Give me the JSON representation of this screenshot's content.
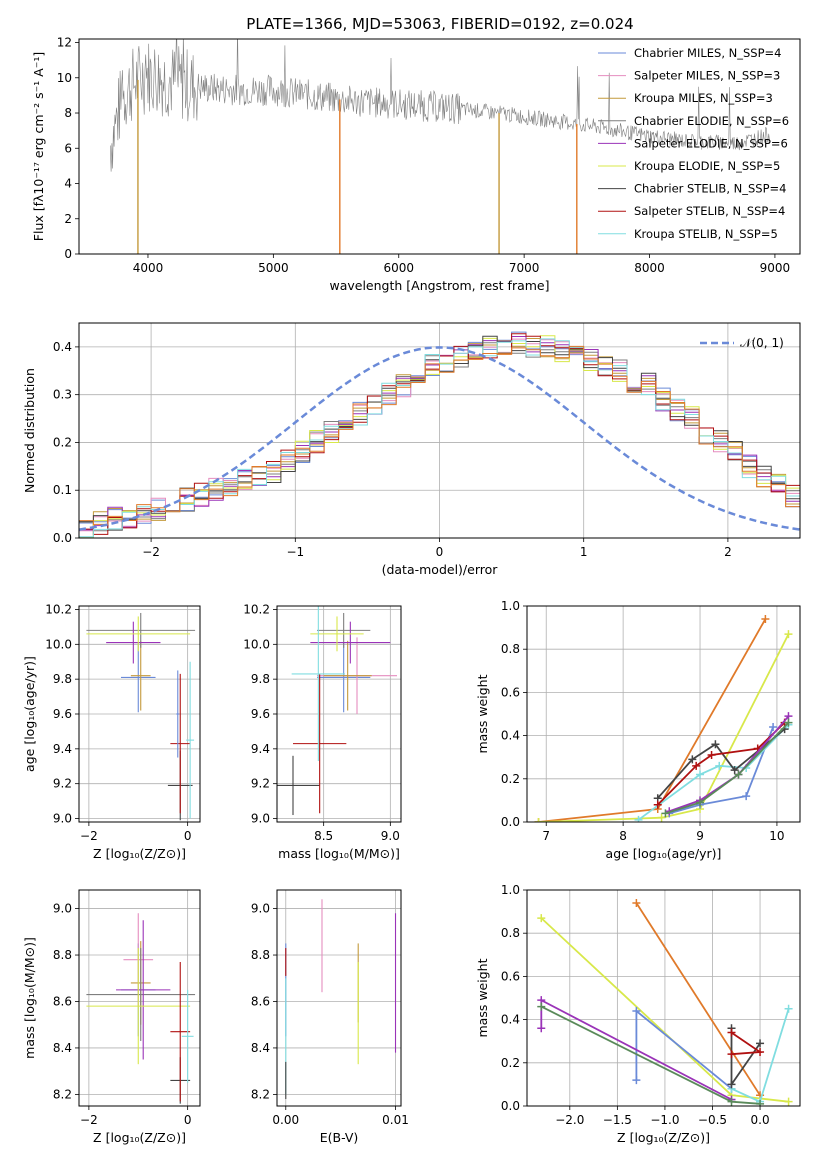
{
  "colors": {
    "Chabrier MILES": "#6a8ad8",
    "Salpeter MILES": "#e58dbf",
    "Kroupa MILES": "#c49a3c",
    "Chabrier ELODIE": "#7f7f7f",
    "Salpeter ELODIE": "#9a33b8",
    "Kroupa ELODIE": "#d8e84a",
    "Chabrier STELIB": "#444444",
    "Salpeter STELIB": "#b01010",
    "Kroupa STELIB": "#80dde0",
    "orange": "#e07a2a",
    "green": "#5a8a5a",
    "normal": "#6a8ad8"
  },
  "chart_data": [
    {
      "type": "line",
      "title": "PLATE=1366, MJD=53063, FIBERID=0192, z=0.024",
      "xlabel": "wavelength [Angstrom, rest frame]",
      "ylabel": "Flux [fλ10⁻¹⁷ erg cm⁻² s⁻¹ A⁻¹]",
      "xlim": [
        3450,
        9200
      ],
      "ylim": [
        0,
        12.2
      ],
      "xticks": [
        "4000",
        "5000",
        "6000",
        "7000",
        "8000",
        "9000"
      ],
      "yticks": [
        "0",
        "2",
        "4",
        "6",
        "8",
        "10",
        "12"
      ],
      "legend": [
        "Chabrier MILES, N_SSP=4",
        "Salpeter MILES, N_SSP=3",
        "Kroupa MILES, N_SSP=3",
        "Chabrier ELODIE, N_SSP=6",
        "Salpeter ELODIE, N_SSP=6",
        "Kroupa ELODIE, N_SSP=5",
        "Chabrier STELIB, N_SSP=4",
        "Salpeter STELIB, N_SSP=4",
        "Kroupa STELIB, N_SSP=5"
      ],
      "legend_position": "top-right",
      "data_spectrum_continuum": {
        "x": [
          3700,
          3800,
          3900,
          4000,
          4100,
          4300,
          4500,
          4800,
          5000,
          5300,
          5600,
          6000,
          6400,
          6800,
          7200,
          7600,
          7900,
          8300,
          8700,
          8960
        ],
        "y": [
          6.2,
          9.0,
          9.8,
          10.2,
          10.0,
          9.6,
          9.4,
          9.3,
          9.3,
          9.0,
          8.7,
          8.5,
          8.3,
          8.0,
          7.6,
          7.2,
          6.8,
          6.4,
          6.3,
          6.8
        ]
      },
      "glitches_x": [
        3920,
        5530,
        6800,
        7420
      ]
    },
    {
      "type": "bar",
      "xlabel": "(data-model)/error",
      "ylabel": "Normed distribution",
      "xlim": [
        -2.5,
        2.5
      ],
      "ylim": [
        0,
        0.45
      ],
      "xticks": [
        "−2",
        "−1",
        "0",
        "1",
        "2"
      ],
      "yticks": [
        "0.0",
        "0.1",
        "0.2",
        "0.3",
        "0.4"
      ],
      "legend": [
        "𝒩(0, 1)"
      ],
      "legend_position": "top-right",
      "grid": true,
      "bin_edges_start": -2.5,
      "bin_width": 0.1,
      "histogram_values": [
        0.02,
        0.03,
        0.04,
        0.04,
        0.05,
        0.06,
        0.07,
        0.08,
        0.09,
        0.1,
        0.11,
        0.12,
        0.13,
        0.14,
        0.16,
        0.18,
        0.2,
        0.22,
        0.24,
        0.26,
        0.28,
        0.3,
        0.32,
        0.34,
        0.36,
        0.37,
        0.38,
        0.39,
        0.4,
        0.4,
        0.41,
        0.4,
        0.4,
        0.39,
        0.38,
        0.37,
        0.36,
        0.35,
        0.33,
        0.32,
        0.29,
        0.27,
        0.25,
        0.22,
        0.2,
        0.18,
        0.15,
        0.13,
        0.11,
        0.09
      ]
    },
    {
      "type": "scatter",
      "xlabel": "Z [log₁₀(Z/Z⊙)]",
      "ylabel": "age  [log₁₀(age/yr)]",
      "xlim": [
        -2.2,
        0.25
      ],
      "ylim": [
        8.98,
        10.22
      ],
      "xticks": [
        "−2",
        "0"
      ],
      "yticks": [
        "9.0",
        "9.2",
        "9.4",
        "9.6",
        "9.8",
        "10.0",
        "10.2"
      ],
      "grid": true,
      "points": [
        {
          "s": "Chabrier MILES",
          "x": -1.0,
          "y": 9.81,
          "dx": 0.35,
          "dy": 0.2
        },
        {
          "s": "Kroupa MILES",
          "x": -0.95,
          "y": 9.82,
          "dx": 0.2,
          "dy": 0.2
        },
        {
          "s": "Chabrier ELODIE",
          "x": -0.95,
          "y": 10.08,
          "dx": 1.1,
          "dy": 0.1
        },
        {
          "s": "Salpeter ELODIE",
          "x": -1.1,
          "y": 10.01,
          "dx": 0.55,
          "dy": 0.12
        },
        {
          "s": "Kroupa ELODIE",
          "x": -1.0,
          "y": 10.06,
          "dx": 1.05,
          "dy": 0.1
        },
        {
          "s": "Chabrier STELIB",
          "x": -0.15,
          "y": 9.19,
          "dx": 0.25,
          "dy": 0.2
        },
        {
          "s": "Salpeter STELIB",
          "x": -0.15,
          "y": 9.43,
          "dx": 0.2,
          "dy": 0.4
        },
        {
          "s": "Kroupa STELIB",
          "x": 0.05,
          "y": 9.45,
          "dx": 0.08,
          "dy": 0.45
        },
        {
          "s": "Chabrier MILES",
          "x": -0.2,
          "y": 9.6,
          "dx": 0.03,
          "dy": 0.25
        }
      ]
    },
    {
      "type": "scatter",
      "xlabel": "mass [log₁₀(M/M⊙)]",
      "ylabel": "",
      "xlim": [
        8.15,
        9.08
      ],
      "ylim": [
        8.98,
        10.22
      ],
      "xticks": [
        "8.5",
        "9.0"
      ],
      "yticks": [
        "9.0",
        "9.2",
        "9.4",
        "9.6",
        "9.8",
        "10.0",
        "10.2"
      ],
      "grid": true,
      "points": [
        {
          "s": "Chabrier MILES",
          "x": 8.65,
          "y": 9.81,
          "dx": 0.2,
          "dy": 0.2
        },
        {
          "s": "Salpeter MILES",
          "x": 8.75,
          "y": 9.82,
          "dx": 0.3,
          "dy": 0.22
        },
        {
          "s": "Kroupa MILES",
          "x": 8.68,
          "y": 9.82,
          "dx": 0.18,
          "dy": 0.2
        },
        {
          "s": "Chabrier ELODIE",
          "x": 8.65,
          "y": 10.08,
          "dx": 0.2,
          "dy": 0.1
        },
        {
          "s": "Salpeter ELODIE",
          "x": 8.7,
          "y": 10.01,
          "dx": 0.3,
          "dy": 0.12
        },
        {
          "s": "Kroupa ELODIE",
          "x": 8.6,
          "y": 10.06,
          "dx": 0.2,
          "dy": 0.1
        },
        {
          "s": "Chabrier STELIB",
          "x": 8.27,
          "y": 9.19,
          "dx": 0.2,
          "dy": 0.17
        },
        {
          "s": "Salpeter STELIB",
          "x": 8.47,
          "y": 9.43,
          "dx": 0.2,
          "dy": 0.4
        },
        {
          "s": "Kroupa STELIB",
          "x": 8.46,
          "y": 9.83,
          "dx": 0.2,
          "dy": 0.5
        }
      ]
    },
    {
      "type": "line",
      "xlabel": "age  [log₁₀(age/yr)]",
      "ylabel": "mass weight",
      "xlim": [
        6.75,
        10.3
      ],
      "ylim": [
        0,
        1.0
      ],
      "xticks": [
        "7",
        "8",
        "9",
        "10"
      ],
      "yticks": [
        "0.0",
        "0.2",
        "0.4",
        "0.6",
        "0.8",
        "1.0"
      ],
      "grid": true,
      "series": [
        {
          "s": "orange",
          "x": [
            6.9,
            8.45,
            9.85
          ],
          "y": [
            0.0,
            0.06,
            0.94
          ]
        },
        {
          "s": "Kroupa ELODIE",
          "x": [
            6.9,
            8.5,
            9.0,
            10.15
          ],
          "y": [
            0.0,
            0.02,
            0.06,
            0.87
          ]
        },
        {
          "s": "Chabrier MILES",
          "x": [
            8.6,
            9.0,
            9.6,
            9.95
          ],
          "y": [
            0.04,
            0.08,
            0.12,
            0.44
          ]
        },
        {
          "s": "Kroupa STELIB",
          "x": [
            8.2,
            9.0,
            9.25,
            9.6,
            10.15
          ],
          "y": [
            0.01,
            0.22,
            0.26,
            0.25,
            0.45
          ]
        },
        {
          "s": "Chabrier STELIB",
          "x": [
            8.45,
            8.9,
            9.2,
            9.45,
            10.1
          ],
          "y": [
            0.11,
            0.29,
            0.36,
            0.24,
            0.43
          ]
        },
        {
          "s": "Salpeter STELIB",
          "x": [
            8.45,
            8.95,
            9.15,
            9.75,
            10.1
          ],
          "y": [
            0.08,
            0.26,
            0.31,
            0.34,
            0.46
          ]
        },
        {
          "s": "Salpeter ELODIE",
          "x": [
            8.6,
            9.0,
            9.5,
            10.15
          ],
          "y": [
            0.05,
            0.1,
            0.22,
            0.49
          ]
        },
        {
          "s": "green",
          "x": [
            8.55,
            9.0,
            9.5,
            10.15
          ],
          "y": [
            0.04,
            0.09,
            0.22,
            0.46
          ]
        }
      ]
    },
    {
      "type": "scatter",
      "xlabel": "Z [log₁₀(Z/Z⊙)]",
      "ylabel": "mass [log₁₀(M/M⊙)]",
      "xlim": [
        -2.2,
        0.25
      ],
      "ylim": [
        8.15,
        9.08
      ],
      "xticks": [
        "−2",
        "0"
      ],
      "yticks": [
        "8.2",
        "8.4",
        "8.6",
        "8.8",
        "9.0"
      ],
      "grid": true,
      "points": [
        {
          "s": "Chabrier MILES",
          "x": -1.0,
          "y": 8.65,
          "dx": 0.35,
          "dy": 0.2
        },
        {
          "s": "Salpeter MILES",
          "x": -1.0,
          "y": 8.78,
          "dx": 0.3,
          "dy": 0.2
        },
        {
          "s": "Kroupa MILES",
          "x": -0.95,
          "y": 8.68,
          "dx": 0.2,
          "dy": 0.18
        },
        {
          "s": "Chabrier ELODIE",
          "x": -0.95,
          "y": 8.63,
          "dx": 1.1,
          "dy": 0.2
        },
        {
          "s": "Salpeter ELODIE",
          "x": -0.9,
          "y": 8.65,
          "dx": 0.55,
          "dy": 0.3
        },
        {
          "s": "Kroupa ELODIE",
          "x": -1.0,
          "y": 8.58,
          "dx": 1.05,
          "dy": 0.25
        },
        {
          "s": "Chabrier STELIB",
          "x": -0.15,
          "y": 8.26,
          "dx": 0.2,
          "dy": 0.1
        },
        {
          "s": "Salpeter STELIB",
          "x": -0.15,
          "y": 8.47,
          "dx": 0.2,
          "dy": 0.3
        },
        {
          "s": "Kroupa STELIB",
          "x": 0.0,
          "y": 8.45,
          "dx": 0.12,
          "dy": 0.2
        }
      ]
    },
    {
      "type": "scatter",
      "xlabel": "E(B-V)",
      "ylabel": "",
      "xlim": [
        -0.0008,
        0.0105
      ],
      "ylim": [
        8.15,
        9.08
      ],
      "xticks": [
        "0.00",
        "0.01"
      ],
      "yticks": [
        "8.2",
        "8.4",
        "8.6",
        "8.8",
        "9.0"
      ],
      "grid": true,
      "points": [
        {
          "s": "Chabrier MILES",
          "x": 0.0,
          "y": 8.65,
          "dx": 0.0,
          "dy": 0.2
        },
        {
          "s": "Salpeter STELIB",
          "x": 0.0,
          "y": 8.77,
          "dx": 0.0,
          "dy": 0.06
        },
        {
          "s": "Kroupa STELIB",
          "x": 0.0,
          "y": 8.45,
          "dx": 0.0,
          "dy": 0.25
        },
        {
          "s": "Chabrier STELIB",
          "x": 0.0,
          "y": 8.26,
          "dx": 0.0,
          "dy": 0.08
        },
        {
          "s": "Salpeter MILES",
          "x": 0.0033,
          "y": 8.84,
          "dx": 0.0,
          "dy": 0.2
        },
        {
          "s": "Kroupa MILES",
          "x": 0.0066,
          "y": 8.68,
          "dx": 0.0,
          "dy": 0.17
        },
        {
          "s": "Kroupa ELODIE",
          "x": 0.0066,
          "y": 8.55,
          "dx": 0.0,
          "dy": 0.22
        },
        {
          "s": "Salpeter ELODIE",
          "x": 0.01,
          "y": 8.68,
          "dx": 0.0,
          "dy": 0.3
        }
      ]
    },
    {
      "type": "line",
      "xlabel": "Z [log₁₀(Z/Z⊙)]",
      "ylabel": "mass weight",
      "xlim": [
        -2.45,
        0.42
      ],
      "ylim": [
        0,
        1.0
      ],
      "xticks": [
        "−2.0",
        "−1.5",
        "−1.0",
        "−0.5",
        "0.0"
      ],
      "yticks": [
        "0.0",
        "0.2",
        "0.4",
        "0.6",
        "0.8",
        "1.0"
      ],
      "grid": true,
      "series": [
        {
          "s": "orange",
          "x": [
            -1.3,
            0.0
          ],
          "y": [
            0.94,
            0.05
          ]
        },
        {
          "s": "Kroupa ELODIE",
          "x": [
            -2.3,
            -0.3,
            0.3
          ],
          "y": [
            0.87,
            0.05,
            0.02
          ]
        },
        {
          "s": "Chabrier MILES",
          "x": [
            -1.3,
            -1.3,
            -0.3
          ],
          "y": [
            0.12,
            0.44,
            0.08
          ]
        },
        {
          "s": "Kroupa STELIB",
          "x": [
            -0.3,
            0.0,
            0.3
          ],
          "y": [
            0.08,
            0.02,
            0.45
          ]
        },
        {
          "s": "Chabrier STELIB",
          "x": [
            -0.3,
            -0.3,
            0.0
          ],
          "y": [
            0.36,
            0.1,
            0.29
          ]
        },
        {
          "s": "Salpeter STELIB",
          "x": [
            -0.3,
            0.0,
            -0.3
          ],
          "y": [
            0.34,
            0.25,
            0.24
          ]
        },
        {
          "s": "Salpeter ELODIE",
          "x": [
            -2.3,
            -2.3,
            -0.3
          ],
          "y": [
            0.36,
            0.49,
            0.03
          ]
        },
        {
          "s": "green",
          "x": [
            -2.3,
            -0.3,
            0.0
          ],
          "y": [
            0.46,
            0.02,
            0.01
          ]
        }
      ]
    }
  ]
}
